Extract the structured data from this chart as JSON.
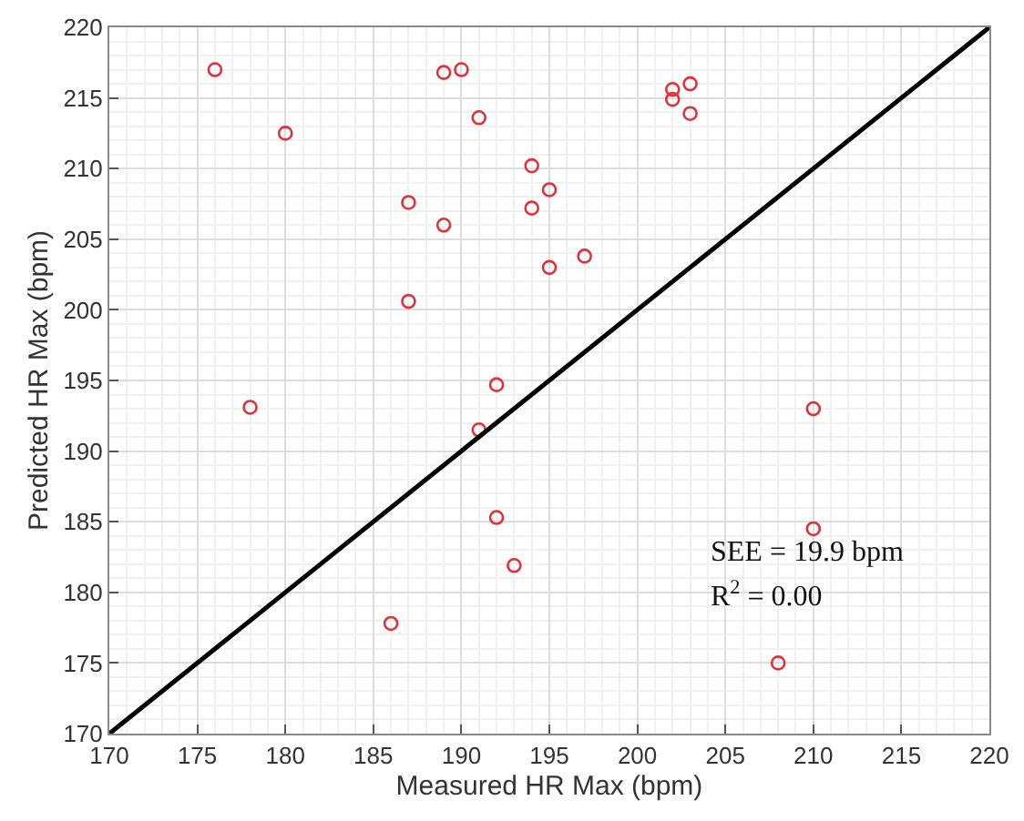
{
  "chart_data": {
    "type": "scatter",
    "xlabel": "Measured HR Max (bpm)",
    "ylabel": "Predicted HR Max (bpm)",
    "xlim": [
      170,
      220
    ],
    "ylim": [
      170,
      220
    ],
    "xticks": [
      170,
      175,
      180,
      185,
      190,
      195,
      200,
      205,
      210,
      215,
      220
    ],
    "yticks": [
      170,
      175,
      180,
      185,
      190,
      195,
      200,
      205,
      210,
      215,
      220
    ],
    "grid": true,
    "annotations": [
      "SEE = 19.9 bpm",
      "R$^{2}$ = 0.00"
    ],
    "series": [
      {
        "marker": "circle",
        "color": "#e0323c",
        "x": [
          176,
          178,
          180,
          186,
          187,
          187,
          189,
          189,
          190,
          191,
          191,
          192,
          192,
          193,
          194,
          194,
          195,
          195,
          197,
          202,
          202,
          203,
          203,
          208,
          210,
          210
        ],
        "values": [
          217,
          193.1,
          212.5,
          177.8,
          207.6,
          200.6,
          216.8,
          206,
          217,
          213.6,
          191.5,
          194.7,
          185.3,
          181.9,
          210.2,
          207.2,
          208.5,
          203,
          203.8,
          215.6,
          214.9,
          216,
          213.9,
          175,
          193,
          184.5
        ]
      },
      {
        "type": "line",
        "marker": "none",
        "color": "#000000",
        "x": [
          170,
          220
        ],
        "values": [
          170,
          220
        ]
      }
    ]
  }
}
